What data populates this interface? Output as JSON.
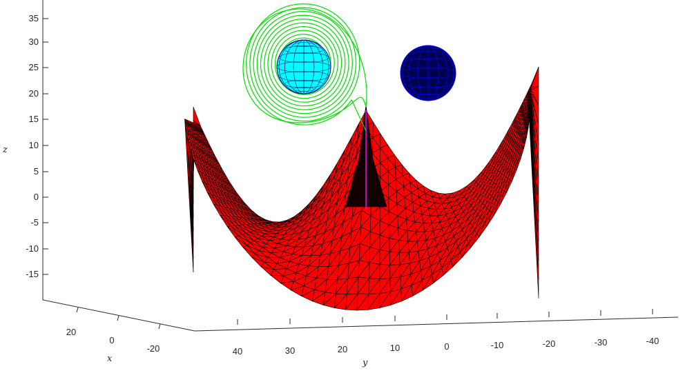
{
  "chart_data": {
    "type": "surface3d",
    "axes": {
      "x": {
        "label": "x",
        "ticks": [
          "20",
          "0",
          "-20"
        ]
      },
      "y": {
        "label": "y",
        "ticks": [
          "40",
          "30",
          "20",
          "10",
          "0",
          "-10",
          "-20",
          "-30",
          "-40"
        ]
      },
      "z": {
        "label": "z",
        "ticks": [
          "35",
          "30",
          "25",
          "20",
          "15",
          "10",
          "5",
          "0",
          "-5",
          "-10",
          "-15"
        ],
        "range": [
          -20,
          38
        ]
      }
    },
    "grid": false,
    "legend": "none",
    "objects": [
      {
        "kind": "triangulated-surface",
        "shape": "bowl with central cusp",
        "face_color": "#ff0000",
        "edge_color": "#000000"
      },
      {
        "kind": "sphere",
        "position": "upper-left",
        "face_color": "#00ffff",
        "edge_color": "#000080",
        "center_z": 25
      },
      {
        "kind": "sphere",
        "position": "upper-right",
        "face_color": "#000050",
        "edge_color": "#0000ff",
        "center_z": 24
      },
      {
        "kind": "spiral-trajectory",
        "color": "#00dd00",
        "z_range": [
          14,
          37
        ]
      },
      {
        "kind": "vertical-segment",
        "color": "#ff00ff",
        "z_range": [
          -2,
          15
        ]
      }
    ]
  }
}
